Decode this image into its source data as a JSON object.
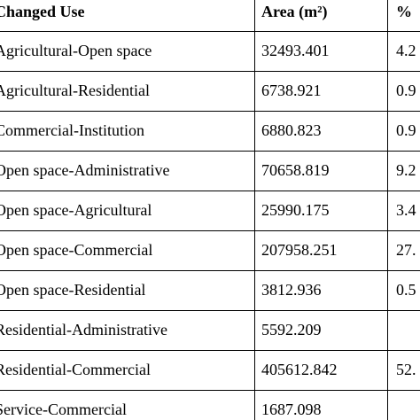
{
  "table": {
    "header": [
      "Changed Use",
      "Area (m²)",
      "%"
    ],
    "rows": [
      [
        "Agricultural-Open space",
        "32493.401",
        "4.2"
      ],
      [
        "Agricultural-Residential",
        "6738.921",
        "0.9"
      ],
      [
        "Commercial-Institution",
        "6880.823",
        "0.9"
      ],
      [
        "Open space-Administrative",
        "70658.819",
        "9.2"
      ],
      [
        "Open space-Agricultural",
        "25990.175",
        "3.4"
      ],
      [
        "Open space-Commercial",
        "207958.251",
        "27."
      ],
      [
        "Open space-Residential",
        "3812.936",
        "0.5"
      ],
      [
        "Residential-Administrative",
        "5592.209",
        null
      ],
      [
        "Residential-Commercial",
        "405612.842",
        "52."
      ],
      [
        "Service-Commercial",
        "1687.098",
        null
      ]
    ]
  }
}
